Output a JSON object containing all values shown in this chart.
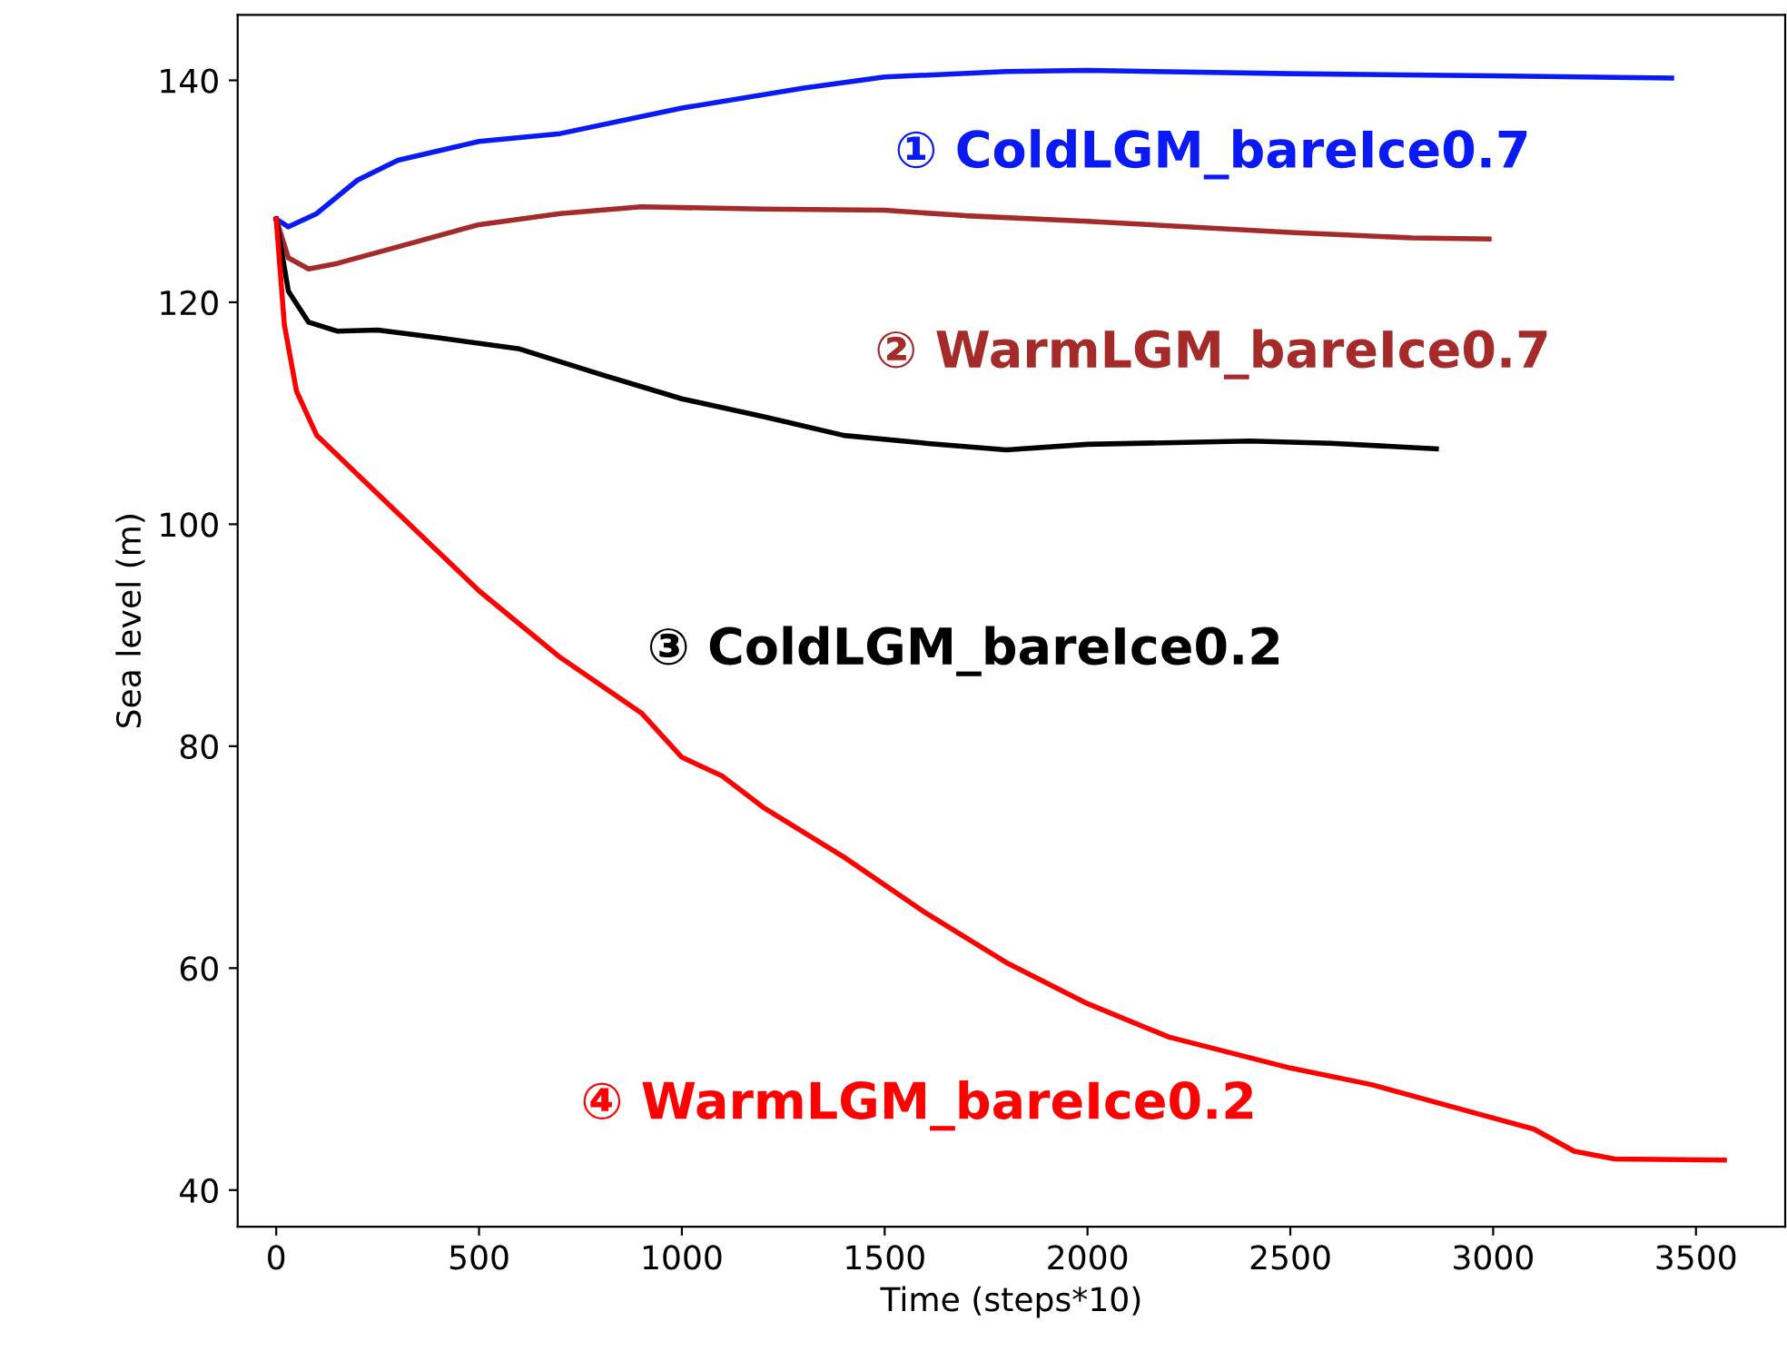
{
  "chart_data": {
    "type": "line",
    "xlabel": "Time (steps*10)",
    "ylabel": "Sea level (m)",
    "xlim": [
      -95,
      3720
    ],
    "ylim": [
      36.7,
      145.9
    ],
    "xticks": [
      0,
      500,
      1000,
      1500,
      2000,
      2500,
      3000,
      3500
    ],
    "yticks": [
      40,
      60,
      80,
      100,
      120,
      140
    ],
    "grid": false,
    "legend": false,
    "series": [
      {
        "name": "① ColdLGM_bareIce0.7",
        "color": "#0a1af5",
        "x": [
          0,
          30,
          100,
          200,
          300,
          500,
          700,
          1000,
          1300,
          1500,
          1800,
          2000,
          2500,
          3000,
          3440
        ],
        "values": [
          127.5,
          126.8,
          128,
          131,
          132.8,
          134.5,
          135.2,
          137.5,
          139.3,
          140.3,
          140.8,
          140.9,
          140.6,
          140.4,
          140.2
        ]
      },
      {
        "name": "② WarmLGM_bareIce0.7",
        "color": "#a52a2a",
        "x": [
          0,
          30,
          80,
          150,
          300,
          500,
          700,
          900,
          1200,
          1500,
          1700,
          2000,
          2500,
          2800,
          2990
        ],
        "values": [
          127.5,
          124,
          123,
          123.5,
          125,
          127,
          128,
          128.6,
          128.4,
          128.3,
          127.8,
          127.3,
          126.3,
          125.8,
          125.7
        ]
      },
      {
        "name": "③ ColdLGM_bareIce0.2",
        "color": "#000000",
        "x": [
          0,
          30,
          80,
          150,
          250,
          400,
          600,
          800,
          1000,
          1200,
          1400,
          1600,
          1800,
          2000,
          2400,
          2600,
          2860
        ],
        "values": [
          127.5,
          121,
          118.2,
          117.4,
          117.5,
          116.8,
          115.8,
          113.5,
          111.3,
          109.7,
          108,
          107.3,
          106.7,
          107.2,
          107.5,
          107.3,
          106.8
        ]
      },
      {
        "name": "④ WarmLGM_bareIce0.2",
        "color": "#ff0000",
        "x": [
          0,
          20,
          50,
          100,
          200,
          400,
          500,
          700,
          900,
          1000,
          1100,
          1200,
          1400,
          1600,
          1800,
          2000,
          2200,
          2500,
          2700,
          3000,
          3100,
          3200,
          3300,
          3570
        ],
        "values": [
          127.5,
          118,
          112,
          108,
          104.5,
          97.5,
          94,
          88,
          83,
          79,
          77.3,
          74.5,
          70,
          65,
          60.5,
          56.8,
          53.8,
          51,
          49.5,
          46.5,
          45.5,
          43.5,
          42.8,
          42.7
        ]
      }
    ]
  }
}
